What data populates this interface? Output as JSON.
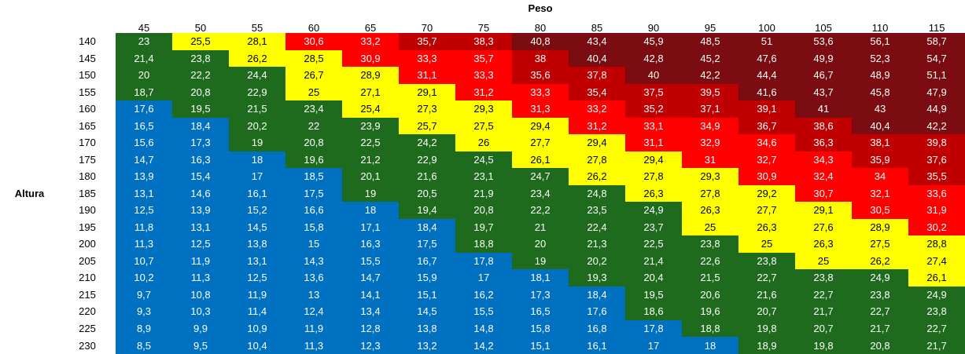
{
  "peso_label": "Peso",
  "altura_label": "Altura",
  "weights": [
    "45",
    "50",
    "55",
    "60",
    "65",
    "70",
    "75",
    "80",
    "85",
    "90",
    "95",
    "100",
    "105",
    "110",
    "115"
  ],
  "colors": {
    "blue": "#0070c0",
    "green": "#1e6b1e",
    "yellow": "#ffff00",
    "red": "#ff0000",
    "darkred": "#c00000",
    "maroon": "#7b0c12"
  },
  "rows": [
    {
      "height": "140",
      "values": [
        "23",
        "25,5",
        "28,1",
        "30,6",
        "33,2",
        "35,7",
        "38,3",
        "40,8",
        "43,4",
        "45,9",
        "48,5",
        "51",
        "53,6",
        "56,1",
        "58,7"
      ],
      "colors": [
        "green",
        "yellow",
        "yellow",
        "red",
        "red",
        "darkred",
        "darkred",
        "maroon",
        "maroon",
        "maroon",
        "maroon",
        "maroon",
        "maroon",
        "maroon",
        "maroon"
      ]
    },
    {
      "height": "145",
      "values": [
        "21,4",
        "23,8",
        "26,2",
        "28,5",
        "30,9",
        "33,3",
        "35,7",
        "38",
        "40,4",
        "42,8",
        "45,2",
        "47,6",
        "49,9",
        "52,3",
        "54,7"
      ],
      "colors": [
        "green",
        "green",
        "yellow",
        "yellow",
        "red",
        "red",
        "red",
        "darkred",
        "maroon",
        "maroon",
        "maroon",
        "maroon",
        "maroon",
        "maroon",
        "maroon"
      ]
    },
    {
      "height": "150",
      "values": [
        "20",
        "22,2",
        "24,4",
        "26,7",
        "28,9",
        "31,1",
        "33,3",
        "35,6",
        "37,8",
        "40",
        "42,2",
        "44,4",
        "46,7",
        "48,9",
        "51,1"
      ],
      "colors": [
        "green",
        "green",
        "green",
        "yellow",
        "yellow",
        "red",
        "red",
        "darkred",
        "darkred",
        "maroon",
        "maroon",
        "maroon",
        "maroon",
        "maroon",
        "maroon"
      ]
    },
    {
      "height": "155",
      "values": [
        "18,7",
        "20,8",
        "22,9",
        "25",
        "27,1",
        "29,1",
        "31,2",
        "33,3",
        "35,4",
        "37,5",
        "39,5",
        "41,6",
        "43,7",
        "45,8",
        "47,9"
      ],
      "colors": [
        "green",
        "green",
        "green",
        "yellow",
        "yellow",
        "yellow",
        "red",
        "red",
        "darkred",
        "darkred",
        "darkred",
        "maroon",
        "maroon",
        "maroon",
        "maroon"
      ]
    },
    {
      "height": "160",
      "values": [
        "17,6",
        "19,5",
        "21,5",
        "23,4",
        "25,4",
        "27,3",
        "29,3",
        "31,3",
        "33,2",
        "35,2",
        "37,1",
        "39,1",
        "41",
        "43",
        "44,9"
      ],
      "colors": [
        "blue",
        "green",
        "green",
        "green",
        "yellow",
        "yellow",
        "yellow",
        "red",
        "red",
        "darkred",
        "darkred",
        "darkred",
        "maroon",
        "maroon",
        "maroon"
      ]
    },
    {
      "height": "165",
      "values": [
        "16,5",
        "18,4",
        "20,2",
        "22",
        "23,9",
        "25,7",
        "27,5",
        "29,4",
        "31,2",
        "33,1",
        "34,9",
        "36,7",
        "38,6",
        "40,4",
        "42,2"
      ],
      "colors": [
        "blue",
        "blue",
        "green",
        "green",
        "green",
        "yellow",
        "yellow",
        "yellow",
        "red",
        "red",
        "red",
        "darkred",
        "darkred",
        "maroon",
        "maroon"
      ]
    },
    {
      "height": "170",
      "values": [
        "15,6",
        "17,3",
        "19",
        "20,8",
        "22,5",
        "24,2",
        "26",
        "27,7",
        "29,4",
        "31,1",
        "32,9",
        "34,6",
        "36,3",
        "38,1",
        "39,8"
      ],
      "colors": [
        "blue",
        "blue",
        "green",
        "green",
        "green",
        "green",
        "yellow",
        "yellow",
        "yellow",
        "red",
        "red",
        "red",
        "darkred",
        "darkred",
        "darkred"
      ]
    },
    {
      "height": "175",
      "values": [
        "14,7",
        "16,3",
        "18",
        "19,6",
        "21,2",
        "22,9",
        "24,5",
        "26,1",
        "27,8",
        "29,4",
        "31",
        "32,7",
        "34,3",
        "35,9",
        "37,6"
      ],
      "colors": [
        "blue",
        "blue",
        "blue",
        "green",
        "green",
        "green",
        "green",
        "yellow",
        "yellow",
        "yellow",
        "red",
        "red",
        "red",
        "darkred",
        "darkred"
      ]
    },
    {
      "height": "180",
      "values": [
        "13,9",
        "15,4",
        "17",
        "18,5",
        "20,1",
        "21,6",
        "23,1",
        "24,7",
        "26,2",
        "27,8",
        "29,3",
        "30,9",
        "32,4",
        "34",
        "35,5"
      ],
      "colors": [
        "blue",
        "blue",
        "blue",
        "blue",
        "green",
        "green",
        "green",
        "green",
        "yellow",
        "yellow",
        "yellow",
        "red",
        "red",
        "red",
        "darkred"
      ]
    },
    {
      "height": "185",
      "values": [
        "13,1",
        "14,6",
        "16,1",
        "17,5",
        "19",
        "20,5",
        "21,9",
        "23,4",
        "24,8",
        "26,3",
        "27,8",
        "29,2",
        "30,7",
        "32,1",
        "33,6"
      ],
      "colors": [
        "blue",
        "blue",
        "blue",
        "blue",
        "green",
        "green",
        "green",
        "green",
        "green",
        "yellow",
        "yellow",
        "yellow",
        "red",
        "red",
        "red"
      ]
    },
    {
      "height": "190",
      "values": [
        "12,5",
        "13,9",
        "15,2",
        "16,6",
        "18",
        "19,4",
        "20,8",
        "22,2",
        "23,5",
        "24,9",
        "26,3",
        "27,7",
        "29,1",
        "30,5",
        "31,9"
      ],
      "colors": [
        "blue",
        "blue",
        "blue",
        "blue",
        "blue",
        "green",
        "green",
        "green",
        "green",
        "green",
        "yellow",
        "yellow",
        "yellow",
        "red",
        "red"
      ]
    },
    {
      "height": "195",
      "values": [
        "11,8",
        "13,1",
        "14,5",
        "15,8",
        "17,1",
        "18,4",
        "19,7",
        "21",
        "22,4",
        "23,7",
        "25",
        "26,3",
        "27,6",
        "28,9",
        "30,2"
      ],
      "colors": [
        "blue",
        "blue",
        "blue",
        "blue",
        "blue",
        "blue",
        "green",
        "green",
        "green",
        "green",
        "yellow",
        "yellow",
        "yellow",
        "yellow",
        "red"
      ]
    },
    {
      "height": "200",
      "values": [
        "11,3",
        "12,5",
        "13,8",
        "15",
        "16,3",
        "17,5",
        "18,8",
        "20",
        "21,3",
        "22,5",
        "23,8",
        "25",
        "26,3",
        "27,5",
        "28,8"
      ],
      "colors": [
        "blue",
        "blue",
        "blue",
        "blue",
        "blue",
        "blue",
        "green",
        "green",
        "green",
        "green",
        "green",
        "yellow",
        "yellow",
        "yellow",
        "yellow"
      ]
    },
    {
      "height": "205",
      "values": [
        "10,7",
        "11,9",
        "13,1",
        "14,3",
        "15,5",
        "16,7",
        "17,8",
        "19",
        "20,2",
        "21,4",
        "22,6",
        "23,8",
        "25",
        "26,2",
        "27,4"
      ],
      "colors": [
        "blue",
        "blue",
        "blue",
        "blue",
        "blue",
        "blue",
        "blue",
        "green",
        "green",
        "green",
        "green",
        "green",
        "yellow",
        "yellow",
        "yellow"
      ]
    },
    {
      "height": "210",
      "values": [
        "10,2",
        "11,3",
        "12,5",
        "13,6",
        "14,7",
        "15,9",
        "17",
        "18,1",
        "19,3",
        "20,4",
        "21,5",
        "22,7",
        "23,8",
        "24,9",
        "26,1"
      ],
      "colors": [
        "blue",
        "blue",
        "blue",
        "blue",
        "blue",
        "blue",
        "blue",
        "blue",
        "green",
        "green",
        "green",
        "green",
        "green",
        "green",
        "yellow"
      ]
    },
    {
      "height": "215",
      "values": [
        "9,7",
        "10,8",
        "11,9",
        "13",
        "14,1",
        "15,1",
        "16,2",
        "17,3",
        "18,4",
        "19,5",
        "20,6",
        "21,6",
        "22,7",
        "23,8",
        "24,9"
      ],
      "colors": [
        "blue",
        "blue",
        "blue",
        "blue",
        "blue",
        "blue",
        "blue",
        "blue",
        "blue",
        "green",
        "green",
        "green",
        "green",
        "green",
        "green"
      ]
    },
    {
      "height": "220",
      "values": [
        "9,3",
        "10,3",
        "11,4",
        "12,4",
        "13,4",
        "14,5",
        "15,5",
        "16,5",
        "17,6",
        "18,6",
        "19,6",
        "20,7",
        "21,7",
        "22,7",
        "23,8"
      ],
      "colors": [
        "blue",
        "blue",
        "blue",
        "blue",
        "blue",
        "blue",
        "blue",
        "blue",
        "blue",
        "green",
        "green",
        "green",
        "green",
        "green",
        "green"
      ]
    },
    {
      "height": "225",
      "values": [
        "8,9",
        "9,9",
        "10,9",
        "11,9",
        "12,8",
        "13,8",
        "14,8",
        "15,8",
        "16,8",
        "17,8",
        "18,8",
        "19,8",
        "20,7",
        "21,7",
        "22,7"
      ],
      "colors": [
        "blue",
        "blue",
        "blue",
        "blue",
        "blue",
        "blue",
        "blue",
        "blue",
        "blue",
        "blue",
        "green",
        "green",
        "green",
        "green",
        "green"
      ]
    },
    {
      "height": "230",
      "values": [
        "8,5",
        "9,5",
        "10,4",
        "11,3",
        "12,3",
        "13,2",
        "14,2",
        "15,1",
        "16,1",
        "17",
        "18",
        "18,9",
        "19,8",
        "20,8",
        "21,7"
      ],
      "colors": [
        "blue",
        "blue",
        "blue",
        "blue",
        "blue",
        "blue",
        "blue",
        "blue",
        "blue",
        "blue",
        "blue",
        "green",
        "green",
        "green",
        "green"
      ]
    }
  ]
}
